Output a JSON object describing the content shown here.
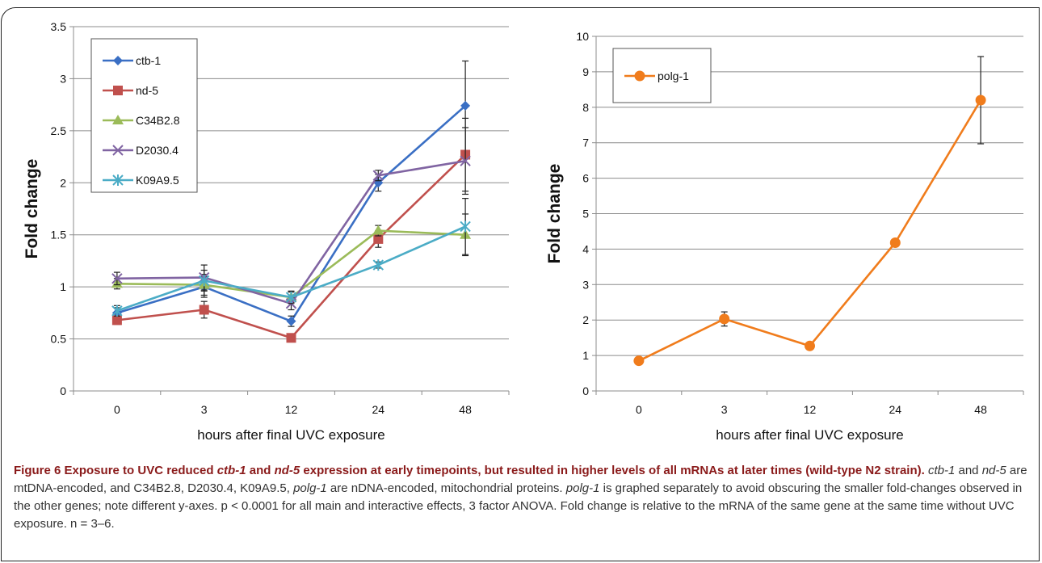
{
  "chart_data": [
    {
      "type": "line",
      "title": "",
      "xlabel": "hours after final UVC exposure",
      "ylabel": "Fold change",
      "categories": [
        "0",
        "3",
        "12",
        "24",
        "48"
      ],
      "ylim": [
        0,
        3.5
      ],
      "yticks": [
        "0",
        "0.5",
        "1",
        "1.5",
        "2",
        "2.5",
        "3",
        "3.5"
      ],
      "grid": true,
      "legend_position": "top-left",
      "series": [
        {
          "name": "ctb-1",
          "color": "#3a6fc4",
          "marker": "diamond",
          "values": [
            0.75,
            1.0,
            0.67,
            2.0,
            2.74
          ],
          "errors": [
            0.05,
            0.1,
            0.05,
            0.08,
            0.43
          ]
        },
        {
          "name": "nd-5",
          "color": "#c0504d",
          "marker": "square",
          "values": [
            0.68,
            0.78,
            0.51,
            1.46,
            2.27
          ],
          "errors": [
            0.04,
            0.08,
            0.04,
            0.08,
            0.35
          ]
        },
        {
          "name": "C34B2.8",
          "color": "#9bbb59",
          "marker": "triangle",
          "values": [
            1.03,
            1.02,
            0.9,
            1.54,
            1.5
          ],
          "errors": [
            0.05,
            0.1,
            0.05,
            0.05,
            0.2
          ]
        },
        {
          "name": "D2030.4",
          "color": "#8064a2",
          "marker": "x",
          "values": [
            1.08,
            1.09,
            0.84,
            2.07,
            2.21
          ],
          "errors": [
            0.06,
            0.12,
            0.06,
            0.05,
            0.32
          ]
        },
        {
          "name": "K09A9.5",
          "color": "#4bacc6",
          "marker": "star",
          "values": [
            0.77,
            1.06,
            0.9,
            1.21,
            1.58
          ],
          "errors": [
            0.05,
            0.1,
            0.06,
            0.03,
            0.27
          ]
        }
      ]
    },
    {
      "type": "line",
      "title": "",
      "xlabel": "hours after final UVC exposure",
      "ylabel": "Fold change",
      "categories": [
        "0",
        "3",
        "12",
        "24",
        "48"
      ],
      "ylim": [
        0,
        10
      ],
      "yticks": [
        "0",
        "1",
        "2",
        "3",
        "4",
        "5",
        "6",
        "7",
        "8",
        "9",
        "10"
      ],
      "grid": true,
      "legend_position": "top-left",
      "series": [
        {
          "name": "polg-1",
          "color": "#f07c1c",
          "marker": "circle",
          "values": [
            0.85,
            2.03,
            1.27,
            4.18,
            8.2
          ],
          "errors": [
            0.05,
            0.2,
            0.05,
            0.05,
            1.23
          ]
        }
      ]
    }
  ],
  "caption": {
    "title_parts": [
      {
        "text": "Figure 6 Exposure to UVC reduced ",
        "italic": false
      },
      {
        "text": "ctb-1",
        "italic": true
      },
      {
        "text": " and ",
        "italic": false
      },
      {
        "text": "nd-5",
        "italic": true
      },
      {
        "text": " expression at early timepoints, but resulted in higher levels of all mRNAs at later times (wild-type N2 strain).",
        "italic": false
      }
    ],
    "body_parts": [
      {
        "text": " ",
        "italic": false
      },
      {
        "text": "ctb-1",
        "italic": true
      },
      {
        "text": " and ",
        "italic": false
      },
      {
        "text": "nd-5",
        "italic": true
      },
      {
        "text": " are mtDNA-encoded, and C34B2.8, D2030.4, K09A9.5, ",
        "italic": false
      },
      {
        "text": "polg-1",
        "italic": true
      },
      {
        "text": " are nDNA-encoded, mitochondrial proteins. ",
        "italic": false
      },
      {
        "text": "polg-1",
        "italic": true
      },
      {
        "text": " is graphed separately to avoid obscuring the smaller fold-changes observed in the other genes; note different y-axes. p < 0.0001 for all main and interactive effects, 3 factor ANOVA. Fold change is relative to the mRNA of the same gene at the same time without UVC exposure. n = 3–6.",
        "italic": false
      }
    ]
  }
}
